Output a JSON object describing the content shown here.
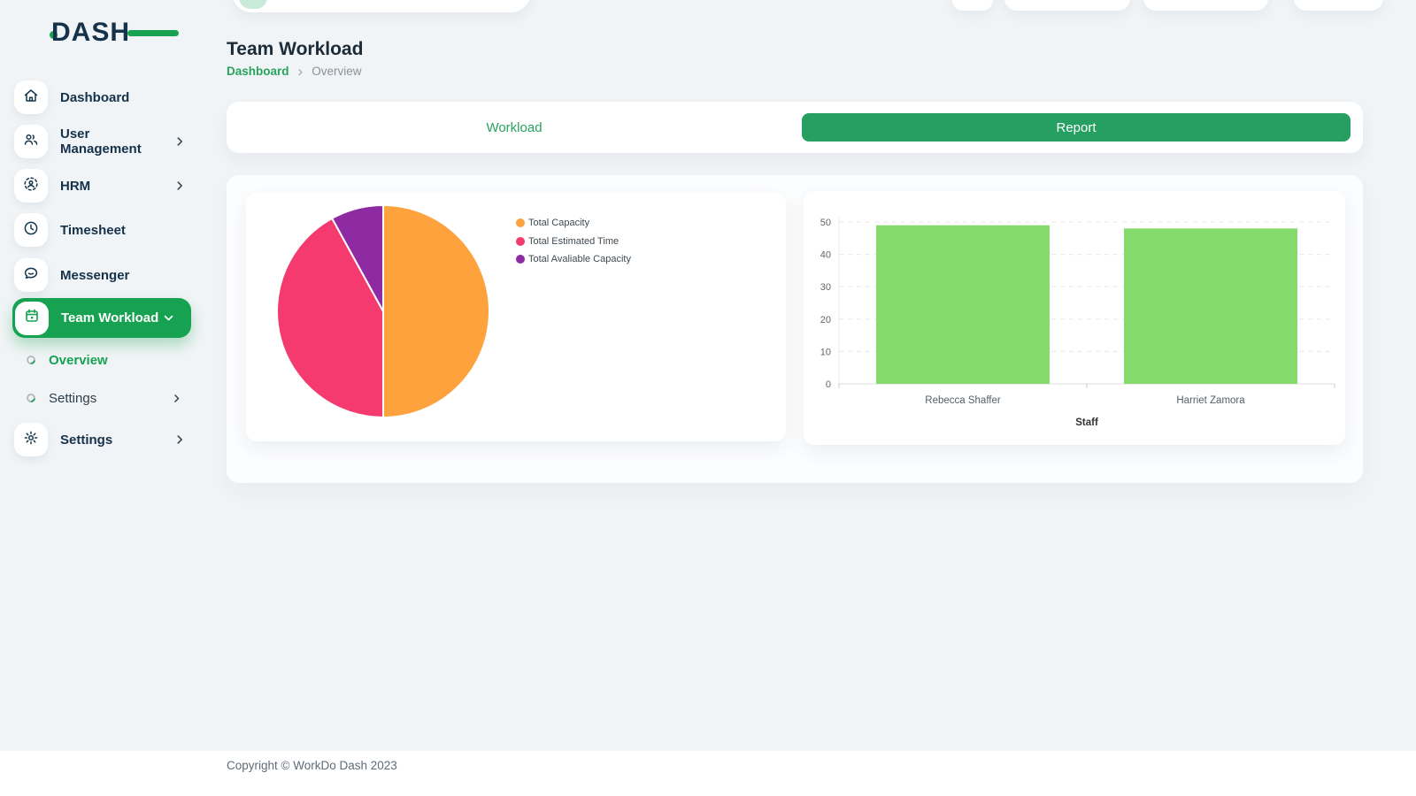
{
  "brand": {
    "name": "DASH",
    "accent_color": "#17a252",
    "logo_color": "#14324a"
  },
  "sidebar": {
    "items": [
      {
        "label": "Dashboard",
        "icon": "home-icon"
      },
      {
        "label": "User Management",
        "icon": "users-icon",
        "has_submenu": true
      },
      {
        "label": "HRM",
        "icon": "hrm-icon",
        "has_submenu": true
      },
      {
        "label": "Timesheet",
        "icon": "clock-icon"
      },
      {
        "label": "Messenger",
        "icon": "chat-icon"
      },
      {
        "label": "Team Workload",
        "icon": "calendar-icon",
        "active": true,
        "expanded": true
      }
    ],
    "team_workload_subitems": [
      {
        "label": "Overview",
        "active": true
      },
      {
        "label": "Settings",
        "has_submenu": true
      }
    ],
    "footer_item": {
      "label": "Settings",
      "icon": "gear-icon",
      "has_submenu": true
    }
  },
  "header": {
    "title": "Team Workload",
    "breadcrumb": {
      "root": "Dashboard",
      "separator": "›",
      "current": "Overview"
    }
  },
  "tabs": {
    "workload": "Workload",
    "report": "Report",
    "active_tab": "Report",
    "report_color": "#26a062",
    "workload_text_color": "#27a35f"
  },
  "chart_data": [
    {
      "type": "pie",
      "labels": [
        "Total Capacity",
        "Total Estimated Time",
        "Total Avaliable Capacity"
      ],
      "values": [
        50,
        42,
        8
      ],
      "unit": "percent-share",
      "colors": [
        "#fda23c",
        "#f43a6e",
        "#8e2ba3"
      ],
      "legend_position": "right",
      "start_angle_deg": 0,
      "direction": "clockwise"
    },
    {
      "type": "bar",
      "categories": [
        "Rebecca Shaffer",
        "Harriet Zamora"
      ],
      "values": [
        49,
        48
      ],
      "xlabel": "Staff",
      "ylabel": "",
      "ylim": [
        0,
        50
      ],
      "yticks": [
        0,
        10,
        20,
        30,
        40,
        50
      ],
      "bar_color": "#84da6c",
      "grid": "dashed-horizontal",
      "legend": "none"
    }
  ],
  "footer": {
    "copyright": "Copyright © WorkDo Dash 2023"
  }
}
